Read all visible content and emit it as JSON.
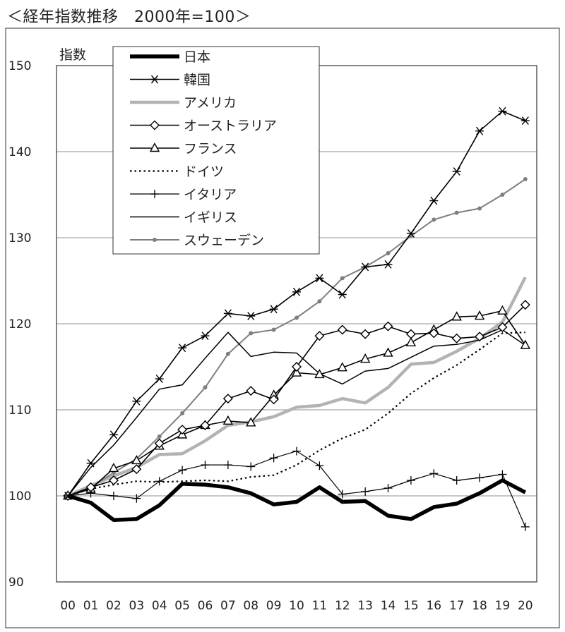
{
  "title": "＜経年指数推移　2000年=100＞",
  "chart_data": {
    "type": "line",
    "title": "＜経年指数推移　2000年=100＞",
    "ylabel": "指数",
    "xlabel": "",
    "ylim": [
      90,
      150
    ],
    "yticks": [
      90,
      100,
      110,
      120,
      130,
      140,
      150
    ],
    "grid": true,
    "legend_position": "top-left",
    "categories": [
      "00",
      "01",
      "02",
      "03",
      "04",
      "05",
      "06",
      "07",
      "08",
      "09",
      "10",
      "11",
      "12",
      "13",
      "14",
      "15",
      "16",
      "17",
      "18",
      "19",
      "20"
    ],
    "series": [
      {
        "name": "日本",
        "style": "thick-black",
        "values": [
          100,
          99.2,
          97.2,
          97.3,
          98.9,
          101.4,
          101.3,
          101.0,
          100.3,
          99.0,
          99.3,
          101.0,
          99.3,
          99.4,
          97.7,
          97.3,
          98.7,
          99.1,
          100.3,
          101.8,
          100.4
        ]
      },
      {
        "name": "韓国",
        "style": "black-asterisk",
        "values": [
          100,
          103.8,
          107.1,
          111.0,
          113.6,
          117.2,
          118.6,
          121.2,
          120.9,
          121.7,
          123.7,
          125.3,
          123.4,
          126.6,
          126.9,
          130.5,
          134.3,
          137.7,
          142.4,
          144.7,
          143.6
        ]
      },
      {
        "name": "アメリカ",
        "style": "thick-gray",
        "values": [
          100,
          101.2,
          102.3,
          103.3,
          104.8,
          104.9,
          106.4,
          108.2,
          108.6,
          109.2,
          110.3,
          110.5,
          111.3,
          110.8,
          112.6,
          115.3,
          115.5,
          116.8,
          118.3,
          120.2,
          125.4
        ]
      },
      {
        "name": "オーストラリア",
        "style": "black-diamond",
        "values": [
          100,
          101.0,
          101.8,
          103.1,
          106.1,
          107.7,
          108.2,
          111.3,
          112.2,
          111.2,
          115.0,
          118.6,
          119.3,
          118.8,
          119.7,
          118.8,
          118.9,
          118.3,
          118.5,
          119.6,
          122.2
        ]
      },
      {
        "name": "フランス",
        "style": "black-triangle",
        "values": [
          100,
          100.8,
          103.2,
          104.1,
          105.8,
          107.1,
          108.2,
          108.7,
          108.5,
          111.7,
          114.3,
          114.1,
          114.9,
          115.9,
          116.6,
          117.8,
          119.3,
          120.8,
          120.9,
          121.5,
          117.5
        ]
      },
      {
        "name": "ドイツ",
        "style": "dotted-black",
        "values": [
          100,
          100.8,
          101.3,
          101.7,
          101.6,
          101.7,
          101.8,
          101.7,
          102.2,
          102.4,
          103.6,
          105.3,
          106.7,
          107.7,
          109.6,
          111.9,
          113.7,
          115.2,
          117.0,
          118.9,
          119.0
        ]
      },
      {
        "name": "イタリア",
        "style": "black-plus",
        "values": [
          100,
          100.3,
          100.0,
          99.7,
          101.7,
          103.0,
          103.6,
          103.6,
          103.4,
          104.4,
          105.2,
          103.5,
          100.2,
          100.5,
          100.9,
          101.8,
          102.6,
          101.8,
          102.1,
          102.5,
          96.4
        ]
      },
      {
        "name": "イギリス",
        "style": "thin-black",
        "values": [
          100,
          103.3,
          105.9,
          109.1,
          112.4,
          112.9,
          116.0,
          119.0,
          116.2,
          116.7,
          116.6,
          114.2,
          113.0,
          114.5,
          114.8,
          116.1,
          117.4,
          117.6,
          118.1,
          119.3,
          117.5
        ]
      },
      {
        "name": "スウェーデン",
        "style": "gray-dot",
        "values": [
          100,
          101.0,
          102.7,
          104.3,
          106.9,
          109.6,
          112.6,
          116.5,
          118.9,
          119.3,
          120.7,
          122.6,
          125.3,
          126.6,
          128.2,
          130.2,
          132.1,
          132.9,
          133.4,
          135.0,
          136.8
        ]
      }
    ]
  }
}
